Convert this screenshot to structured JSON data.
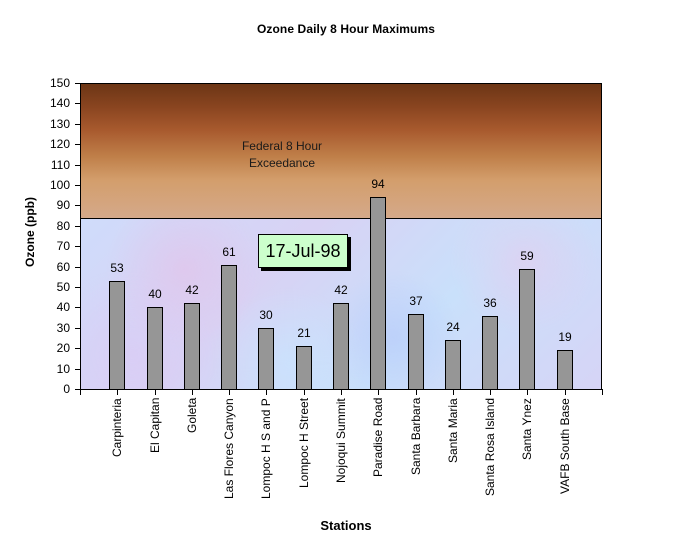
{
  "chart_data": {
    "type": "bar",
    "title": "Ozone Daily 8 Hour Maximums",
    "xlabel": "Stations",
    "ylabel": "Ozone (ppb)",
    "ylim": [
      0,
      150
    ],
    "yticks": [
      0,
      10,
      20,
      30,
      40,
      50,
      60,
      70,
      80,
      90,
      100,
      110,
      120,
      130,
      140,
      150
    ],
    "categories": [
      "Carpinteria",
      "El Capitan",
      "Goleta",
      "Las Flores Canyon",
      "Lompoc H S and P",
      "Lompoc H Street",
      "Nojoqui Summit",
      "Paradise Road",
      "Santa Barbara",
      "Santa Maria",
      "Santa Rosa Island",
      "Santa Ynez",
      "VAFB South Base"
    ],
    "values": [
      53,
      40,
      42,
      61,
      30,
      21,
      42,
      94,
      37,
      24,
      36,
      59,
      19
    ],
    "data_labels": true,
    "bar_color": "#969696",
    "threshold": {
      "value": 84,
      "label": "Federal 8 Hour Exceedance",
      "color_above": "#a85a2e",
      "color_below": "#d0d8f8"
    },
    "annotations": [
      "Federal 8 Hour Exceedance",
      "17-Jul-98"
    ],
    "legend": null,
    "grid": false
  },
  "annotation": {
    "exceedance_line1": "Federal 8 Hour",
    "exceedance_line2": "Exceedance",
    "date": "17-Jul-98"
  }
}
